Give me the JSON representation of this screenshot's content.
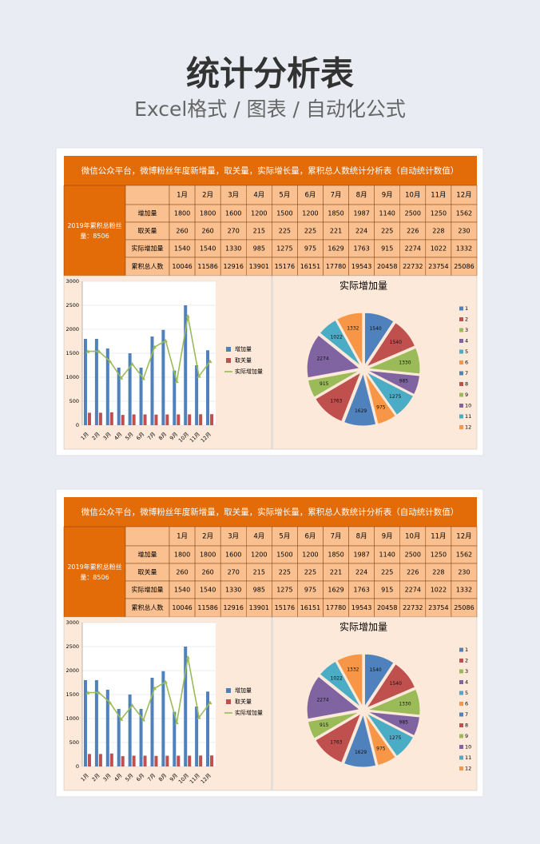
{
  "header": {
    "title": "统计分析表",
    "subtitle": "Excel格式 / 图表 / 自动化公式"
  },
  "table": {
    "title": "微信公众平台，微博粉丝年度新增量，取关量，实际增长量，累积总人数统计分析表（自动统计数值）",
    "summary": "2019年累积总粉丝量：8506",
    "columns": [
      "1月",
      "2月",
      "3月",
      "4月",
      "5月",
      "6月",
      "7月",
      "8月",
      "9月",
      "10月",
      "11月",
      "12月"
    ],
    "rows": [
      {
        "label": "增加量",
        "values": [
          1800,
          1800,
          1600,
          1200,
          1500,
          1200,
          1850,
          1987,
          1140,
          2500,
          1250,
          1562
        ]
      },
      {
        "label": "取关量",
        "values": [
          260,
          260,
          270,
          215,
          225,
          225,
          221,
          224,
          225,
          226,
          228,
          230
        ]
      },
      {
        "label": "实际增加量",
        "values": [
          1540,
          1540,
          1330,
          985,
          1275,
          975,
          1629,
          1763,
          915,
          2274,
          1022,
          1332
        ]
      },
      {
        "label": "累积总人数",
        "values": [
          10046,
          11586,
          12916,
          13901,
          15176,
          16151,
          17780,
          19543,
          20458,
          22732,
          23754,
          25086
        ]
      }
    ]
  },
  "chart_data": [
    {
      "type": "bar",
      "categories": [
        "1月",
        "2月",
        "3月",
        "4月",
        "5月",
        "6月",
        "7月",
        "8月",
        "9月",
        "10月",
        "11月",
        "12月"
      ],
      "series": [
        {
          "name": "增加量",
          "color": "#4f81bd",
          "values": [
            1800,
            1800,
            1600,
            1200,
            1500,
            1200,
            1850,
            1987,
            1140,
            2500,
            1250,
            1562
          ]
        },
        {
          "name": "取关量",
          "color": "#c0504d",
          "values": [
            260,
            260,
            270,
            215,
            225,
            225,
            221,
            224,
            225,
            226,
            228,
            230
          ]
        },
        {
          "name": "实际增加量",
          "color": "#9bbb59",
          "type": "line",
          "values": [
            1540,
            1540,
            1330,
            985,
            1275,
            975,
            1629,
            1763,
            915,
            2274,
            1022,
            1332
          ]
        }
      ],
      "ylim": [
        0,
        3000
      ],
      "yticks": [
        0,
        500,
        1000,
        1500,
        2000,
        2500,
        3000
      ],
      "legend": "right"
    },
    {
      "type": "pie",
      "title": "实际增加量",
      "categories": [
        "1",
        "2",
        "3",
        "4",
        "5",
        "6",
        "7",
        "8",
        "9",
        "10",
        "11",
        "12"
      ],
      "values": [
        1540,
        1540,
        1330,
        985,
        1275,
        975,
        1629,
        1763,
        915,
        2274,
        1022,
        1332
      ],
      "colors": [
        "#4f81bd",
        "#c0504d",
        "#9bbb59",
        "#8064a2",
        "#4bacc6",
        "#f79646",
        "#4f81bd",
        "#c0504d",
        "#9bbb59",
        "#8064a2",
        "#4bacc6",
        "#f79646"
      ],
      "legend": "right"
    }
  ]
}
